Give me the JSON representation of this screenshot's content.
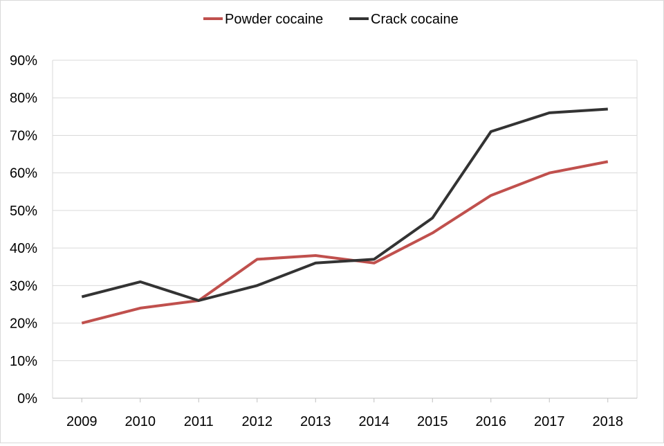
{
  "chart_data": {
    "type": "line",
    "title": "",
    "xlabel": "",
    "ylabel": "",
    "categories": [
      "2009",
      "2010",
      "2011",
      "2012",
      "2013",
      "2014",
      "2015",
      "2016",
      "2017",
      "2018"
    ],
    "series": [
      {
        "name": "Powder cocaine",
        "color": "#c0504d",
        "values": [
          20,
          24,
          26,
          37,
          38,
          36,
          44,
          54,
          60,
          63
        ]
      },
      {
        "name": "Crack cocaine",
        "color": "#333333",
        "values": [
          27,
          31,
          26,
          30,
          36,
          37,
          48,
          71,
          76,
          77
        ]
      }
    ],
    "ylim": [
      0,
      90
    ],
    "yticks": [
      0,
      10,
      20,
      30,
      40,
      50,
      60,
      70,
      80,
      90
    ],
    "ytick_labels": [
      "0%",
      "10%",
      "20%",
      "30%",
      "40%",
      "50%",
      "60%",
      "70%",
      "80%",
      "90%"
    ],
    "grid": true,
    "legend_position": "top-center"
  }
}
